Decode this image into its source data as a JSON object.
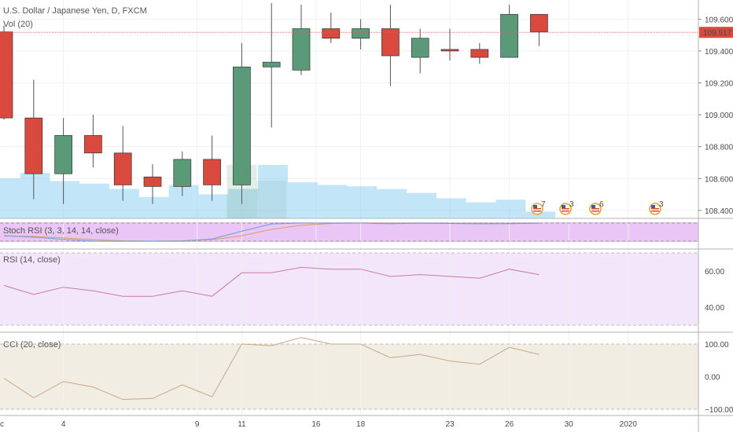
{
  "header": {
    "title": "U.S. Dollar / Japanese Yen, D, FXCM",
    "volume_label": "Vol (20)"
  },
  "panes": {
    "stoch": {
      "title": "Stoch RSI (3, 3, 14, 14, close)",
      "ticks": []
    },
    "rsi": {
      "title": "RSI (14, close)",
      "ticks": [
        "60.00",
        "40.00"
      ]
    },
    "cci": {
      "title": "CCI (20, close)",
      "ticks": [
        "100.00",
        "0.00",
        "−100.00"
      ]
    }
  },
  "price_axis": {
    "ticks": [
      "109.600",
      "109.400",
      "109.200",
      "109.000",
      "108.800",
      "108.600",
      "108.400"
    ],
    "current_price": "109.517"
  },
  "time_axis": {
    "ticks": [
      "4",
      "9",
      "11",
      "16",
      "18",
      "23",
      "26",
      "30",
      "2020"
    ],
    "first_fragment": "c"
  },
  "events": [
    {
      "count": "7"
    },
    {
      "count": "3"
    },
    {
      "count": "6"
    },
    {
      "count": "3"
    }
  ],
  "colors": {
    "up": "#5b9a78",
    "down": "#d9493d",
    "volume": "#8fd0f0",
    "stoch_bg": "#e9c6f5",
    "rsi_bg": "#f3e6fb",
    "cci_bg": "#f2ede2",
    "price_line": "#e0604f"
  },
  "chart_data": {
    "type": "candlestick",
    "title": "U.S. Dollar / Japanese Yen, D, FXCM",
    "ylim": [
      108.35,
      109.72
    ],
    "candles": [
      {
        "o": 109.52,
        "h": 109.56,
        "l": 108.97,
        "c": 108.98
      },
      {
        "o": 108.98,
        "h": 109.22,
        "l": 108.47,
        "c": 108.63
      },
      {
        "o": 108.63,
        "h": 108.98,
        "l": 108.44,
        "c": 108.87
      },
      {
        "o": 108.87,
        "h": 109.0,
        "l": 108.67,
        "c": 108.76
      },
      {
        "o": 108.76,
        "h": 108.93,
        "l": 108.46,
        "c": 108.56
      },
      {
        "o": 108.61,
        "h": 108.69,
        "l": 108.44,
        "c": 108.55
      },
      {
        "o": 108.55,
        "h": 108.77,
        "l": 108.49,
        "c": 108.72
      },
      {
        "o": 108.72,
        "h": 108.87,
        "l": 108.46,
        "c": 108.56
      },
      {
        "o": 108.56,
        "h": 109.45,
        "l": 108.44,
        "c": 109.3
      },
      {
        "o": 109.3,
        "h": 109.7,
        "l": 108.92,
        "c": 109.33
      },
      {
        "o": 109.28,
        "h": 109.69,
        "l": 109.25,
        "c": 109.54
      },
      {
        "o": 109.54,
        "h": 109.64,
        "l": 109.45,
        "c": 109.48
      },
      {
        "o": 109.48,
        "h": 109.6,
        "l": 109.41,
        "c": 109.54
      },
      {
        "o": 109.54,
        "h": 109.69,
        "l": 109.18,
        "c": 109.37
      },
      {
        "o": 109.36,
        "h": 109.54,
        "l": 109.26,
        "c": 109.48
      },
      {
        "o": 109.41,
        "h": 109.54,
        "l": 109.34,
        "c": 109.4
      },
      {
        "o": 109.41,
        "h": 109.45,
        "l": 109.32,
        "c": 109.36
      },
      {
        "o": 109.36,
        "h": 109.69,
        "l": 109.36,
        "c": 109.63
      },
      {
        "o": 109.63,
        "h": 109.63,
        "l": 109.43,
        "c": 109.52
      }
    ],
    "volume": [
      30,
      34,
      28,
      26,
      22,
      16,
      25,
      18,
      22,
      40,
      27,
      25,
      24,
      22,
      19,
      15,
      12,
      14,
      5
    ],
    "stoch_rsi": {
      "k": [
        30,
        22,
        10,
        0,
        0,
        0,
        0,
        12,
        55,
        95,
        100,
        100,
        100,
        96,
        100,
        98,
        96,
        97,
        100
      ],
      "d": [
        28,
        26,
        18,
        8,
        2,
        0,
        2,
        8,
        30,
        65,
        88,
        98,
        100,
        99,
        99,
        98,
        97,
        97,
        99
      ]
    },
    "rsi": [
      52,
      47,
      51,
      49,
      46,
      46,
      49,
      46,
      59,
      59,
      62,
      61,
      61,
      57,
      58,
      57,
      56,
      61,
      58
    ],
    "cci": [
      -5,
      -65,
      -15,
      -32,
      -70,
      -67,
      -25,
      -62,
      100,
      95,
      120,
      100,
      100,
      58,
      68,
      48,
      38,
      90,
      68
    ]
  }
}
